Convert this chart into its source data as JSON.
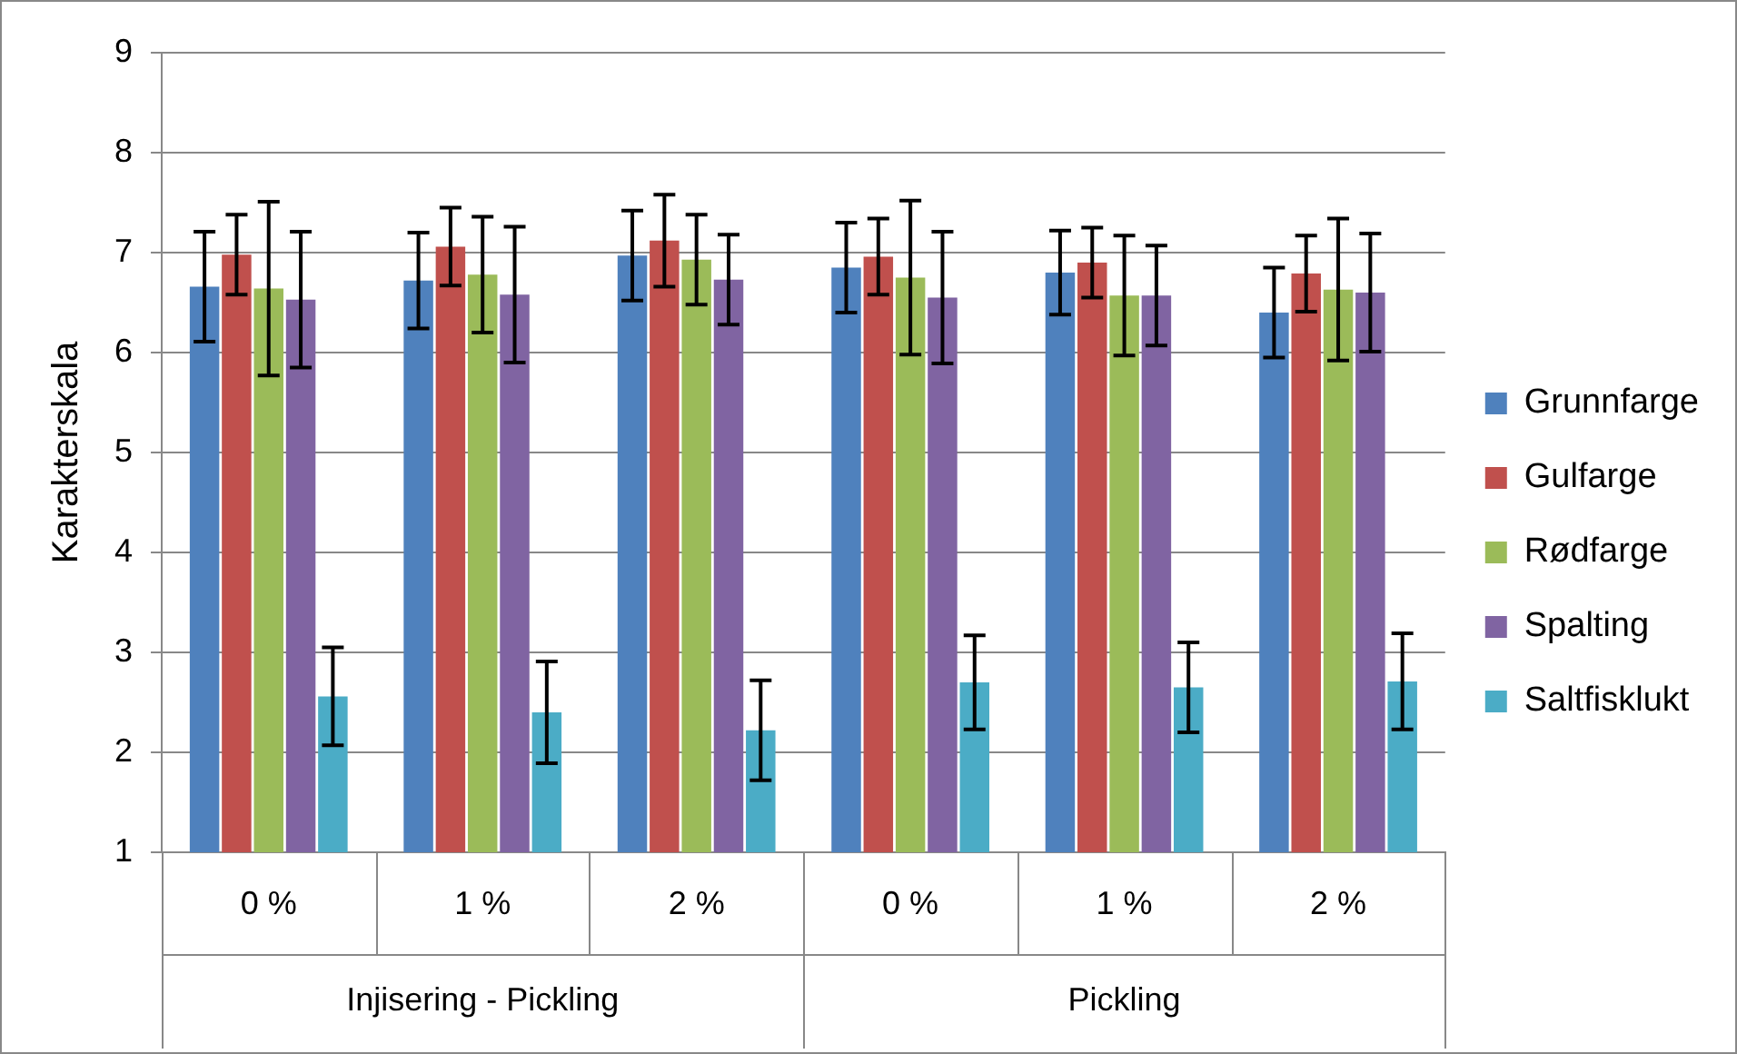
{
  "chart_data": {
    "type": "bar",
    "ylabel": "Karakterskala",
    "categories": [
      "0 %",
      "1 %",
      "2 %",
      "0 %",
      "1 %",
      "2 %"
    ],
    "annotations": [
      "Injisering - Pickling",
      "Pickling"
    ],
    "ylim": [
      1,
      9
    ],
    "yticks": [
      1,
      2,
      3,
      4,
      5,
      6,
      7,
      8,
      9
    ],
    "grid": "y",
    "legend": "right",
    "series": [
      {
        "name": "Grunnfarge",
        "color": "#4f81bd",
        "values": [
          6.66,
          6.72,
          6.97,
          6.85,
          6.8,
          6.4
        ],
        "errors": [
          0.55,
          0.48,
          0.45,
          0.45,
          0.42,
          0.45
        ]
      },
      {
        "name": "Gulfarge",
        "color": "#c0504d",
        "values": [
          6.98,
          7.06,
          7.12,
          6.96,
          6.9,
          6.79
        ],
        "errors": [
          0.4,
          0.39,
          0.46,
          0.38,
          0.35,
          0.38
        ]
      },
      {
        "name": "Rødfarge",
        "color": "#9bbb59",
        "values": [
          6.64,
          6.78,
          6.93,
          6.75,
          6.57,
          6.63
        ],
        "errors": [
          0.87,
          0.58,
          0.45,
          0.77,
          0.6,
          0.71
        ]
      },
      {
        "name": "Spalting",
        "color": "#8064a2",
        "values": [
          6.53,
          6.58,
          6.73,
          6.55,
          6.57,
          6.6
        ],
        "errors": [
          0.68,
          0.68,
          0.45,
          0.66,
          0.5,
          0.59
        ]
      },
      {
        "name": "Saltfisklukt",
        "color": "#4bacc6",
        "values": [
          2.56,
          2.4,
          2.22,
          2.7,
          2.65,
          2.71
        ],
        "errors": [
          0.49,
          0.51,
          0.5,
          0.47,
          0.45,
          0.48
        ]
      }
    ]
  }
}
